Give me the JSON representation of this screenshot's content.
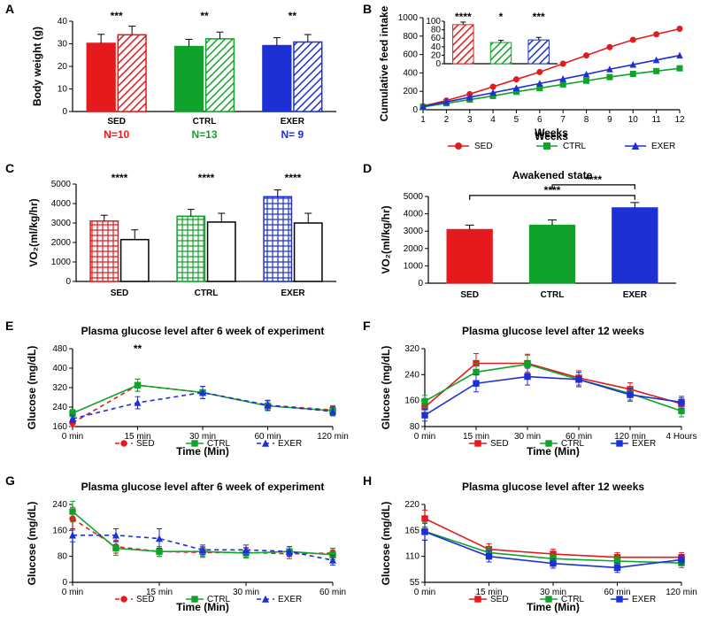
{
  "groups": {
    "SED": {
      "color": "#e41a1c",
      "n_label": "N=10",
      "n_color": "#e41a1c"
    },
    "CTRL": {
      "color": "#10a32b",
      "n_label": "N=13",
      "n_color": "#10a32b"
    },
    "EXER": {
      "color": "#1c30d6",
      "n_label": "N= 9",
      "n_color": "#1c30d6"
    }
  },
  "panelA": {
    "ylabel": "Body weight (g)",
    "ylim": [
      0,
      40
    ],
    "ytick_step": 10,
    "groups": [
      "SED",
      "CTRL",
      "EXER"
    ],
    "bar_width": 0.35,
    "bars": [
      {
        "group": "SED",
        "fill": "solid",
        "value": 30.2,
        "err": 4.0
      },
      {
        "group": "SED",
        "fill": "hatch",
        "value": 34.0,
        "err": 3.8
      },
      {
        "group": "CTRL",
        "fill": "solid",
        "value": 28.8,
        "err": 3.2
      },
      {
        "group": "CTRL",
        "fill": "hatch",
        "value": 32.2,
        "err": 3.0
      },
      {
        "group": "EXER",
        "fill": "solid",
        "value": 29.2,
        "err": 3.5
      },
      {
        "group": "EXER",
        "fill": "hatch",
        "value": 30.8,
        "err": 3.3
      }
    ],
    "sig": [
      "***",
      "**",
      "**"
    ]
  },
  "panelB": {
    "ylabel": "Cumulative feed intake",
    "xlabel": "Weeks",
    "ylim": [
      0,
      1000
    ],
    "ytick_step": 200,
    "xticks": [
      1,
      2,
      3,
      4,
      5,
      6,
      7,
      8,
      9,
      10,
      11,
      12
    ],
    "series": {
      "SED": [
        40,
        100,
        170,
        250,
        330,
        410,
        500,
        590,
        680,
        760,
        820,
        880
      ],
      "CTRL": [
        30,
        70,
        110,
        150,
        195,
        235,
        275,
        315,
        355,
        390,
        420,
        450
      ],
      "EXER": [
        35,
        85,
        135,
        185,
        235,
        285,
        335,
        385,
        440,
        490,
        540,
        590
      ]
    },
    "inset": {
      "ylim": [
        0,
        100
      ],
      "ytick_step": 20,
      "values": {
        "SED": 92,
        "CTRL": 50,
        "EXER": 56
      },
      "err": {
        "SED": 6,
        "CTRL": 5,
        "EXER": 6
      },
      "sig": [
        "****",
        "*",
        "***"
      ]
    }
  },
  "panelC": {
    "ylabel": "VO₂(ml/kg/hr)",
    "ylim": [
      0,
      5000
    ],
    "ytick_step": 1000,
    "groups": [
      "SED",
      "CTRL",
      "EXER"
    ],
    "bars": [
      {
        "group": "SED",
        "fill": "grid",
        "value": 3100,
        "err": 300
      },
      {
        "group": "SED",
        "fill": "open",
        "value": 2150,
        "err": 500
      },
      {
        "group": "CTRL",
        "fill": "grid",
        "value": 3350,
        "err": 350
      },
      {
        "group": "CTRL",
        "fill": "open",
        "value": 3050,
        "err": 450
      },
      {
        "group": "EXER",
        "fill": "grid",
        "value": 4350,
        "err": 350
      },
      {
        "group": "EXER",
        "fill": "open",
        "value": 3000,
        "err": 500
      }
    ],
    "sig": [
      "****",
      "****",
      "****"
    ]
  },
  "panelD": {
    "title": "Awakened state",
    "ylabel": "VO₂(ml/kg/hr)",
    "ylim": [
      0,
      5000
    ],
    "ytick_step": 1000,
    "groups": [
      "SED",
      "CTRL",
      "EXER"
    ],
    "bars": [
      {
        "group": "SED",
        "value": 3100,
        "err": 250
      },
      {
        "group": "CTRL",
        "value": 3350,
        "err": 300
      },
      {
        "group": "EXER",
        "value": 4350,
        "err": 300
      }
    ],
    "sig_brackets": [
      {
        "from": 0,
        "to": 2,
        "label": "****"
      },
      {
        "from": 1,
        "to": 2,
        "label": "****"
      }
    ]
  },
  "panelE": {
    "title": "Plasma glucose level after  6 week of experiment",
    "ylabel": "Glucose (mg/dL)",
    "xlabel": "Time (Min)",
    "xticks": [
      "0 min",
      "15 min",
      "30 min",
      "60 min",
      "120 min"
    ],
    "ylim": [
      160,
      480
    ],
    "ytick_step": 80,
    "series": {
      "SED": {
        "y": [
          175,
          330,
          300,
          248,
          228
        ],
        "err": [
          15,
          25,
          25,
          20,
          18
        ],
        "dash": true,
        "marker": "circle"
      },
      "CTRL": {
        "y": [
          215,
          330,
          300,
          245,
          225
        ],
        "err": [
          15,
          25,
          25,
          20,
          18
        ],
        "dash": false,
        "marker": "square"
      },
      "EXER": {
        "y": [
          192,
          258,
          300,
          248,
          222
        ],
        "err": [
          15,
          25,
          25,
          20,
          18
        ],
        "dash": true,
        "marker": "triangle"
      }
    },
    "sig_at": [
      1
    ],
    "sig_text": "**"
  },
  "panelF": {
    "title": "Plasma glucose level after 12 weeks",
    "ylabel": "Glucose (mg/dL)",
    "xlabel": "Time (Min)",
    "xticks": [
      "0 min",
      "15 min",
      "30 min",
      "60 min",
      "120 min",
      "4 Hours"
    ],
    "ylim": [
      80,
      320
    ],
    "ytick_step": 80,
    "series": {
      "SED": {
        "y": [
          140,
          275,
          275,
          230,
          195,
          150
        ],
        "err": [
          18,
          30,
          28,
          22,
          20,
          18
        ],
        "marker": "square"
      },
      "CTRL": {
        "y": [
          158,
          248,
          272,
          225,
          182,
          128
        ],
        "err": [
          18,
          28,
          28,
          22,
          20,
          18
        ],
        "marker": "square"
      },
      "EXER": {
        "y": [
          115,
          213,
          234,
          225,
          178,
          155
        ],
        "err": [
          18,
          26,
          26,
          22,
          20,
          18
        ],
        "marker": "square"
      }
    }
  },
  "panelG": {
    "title": "Plasma glucose level after 6 week of experiment",
    "ylabel": "Glucose (mg/dL)",
    "xlabel": "Time (Min)",
    "xticks": [
      "0 min",
      "15 min",
      "30 min",
      "60 min"
    ],
    "extra_ticks": 3,
    "ylim": [
      0,
      240
    ],
    "ytick_step": 80,
    "series": {
      "SED": {
        "y": [
          196,
          110,
          95,
          92,
          92,
          88,
          90
        ],
        "err": [
          35,
          20,
          15,
          15,
          15,
          15,
          15
        ],
        "dash": true,
        "marker": "circle"
      },
      "CTRL": {
        "y": [
          218,
          105,
          95,
          95,
          90,
          95,
          85
        ],
        "err": [
          32,
          22,
          15,
          15,
          15,
          15,
          15
        ],
        "dash": false,
        "marker": "square"
      },
      "EXER": {
        "y": [
          145,
          145,
          135,
          100,
          100,
          95,
          68
        ],
        "err": [
          20,
          20,
          30,
          15,
          15,
          15,
          15
        ],
        "dash": true,
        "marker": "triangle"
      }
    }
  },
  "panelH": {
    "title": "Plasma glucose level after 12 weeks",
    "ylabel": "Glucose (mg/dL)",
    "xlabel": "Time (Min)",
    "xticks": [
      "0 min",
      "15 min",
      "30 min",
      "60 min",
      "120 min"
    ],
    "ylim": [
      55,
      220
    ],
    "ytick_step": 55,
    "series": {
      "SED": {
        "y": [
          190,
          125,
          115,
          108,
          108
        ],
        "err": [
          18,
          12,
          10,
          10,
          10
        ],
        "marker": "square"
      },
      "CTRL": {
        "y": [
          163,
          118,
          105,
          100,
          96
        ],
        "err": [
          18,
          12,
          10,
          10,
          10
        ],
        "marker": "square"
      },
      "EXER": {
        "y": [
          162,
          110,
          95,
          86,
          103
        ],
        "err": [
          18,
          12,
          10,
          10,
          10
        ],
        "marker": "square"
      }
    }
  }
}
